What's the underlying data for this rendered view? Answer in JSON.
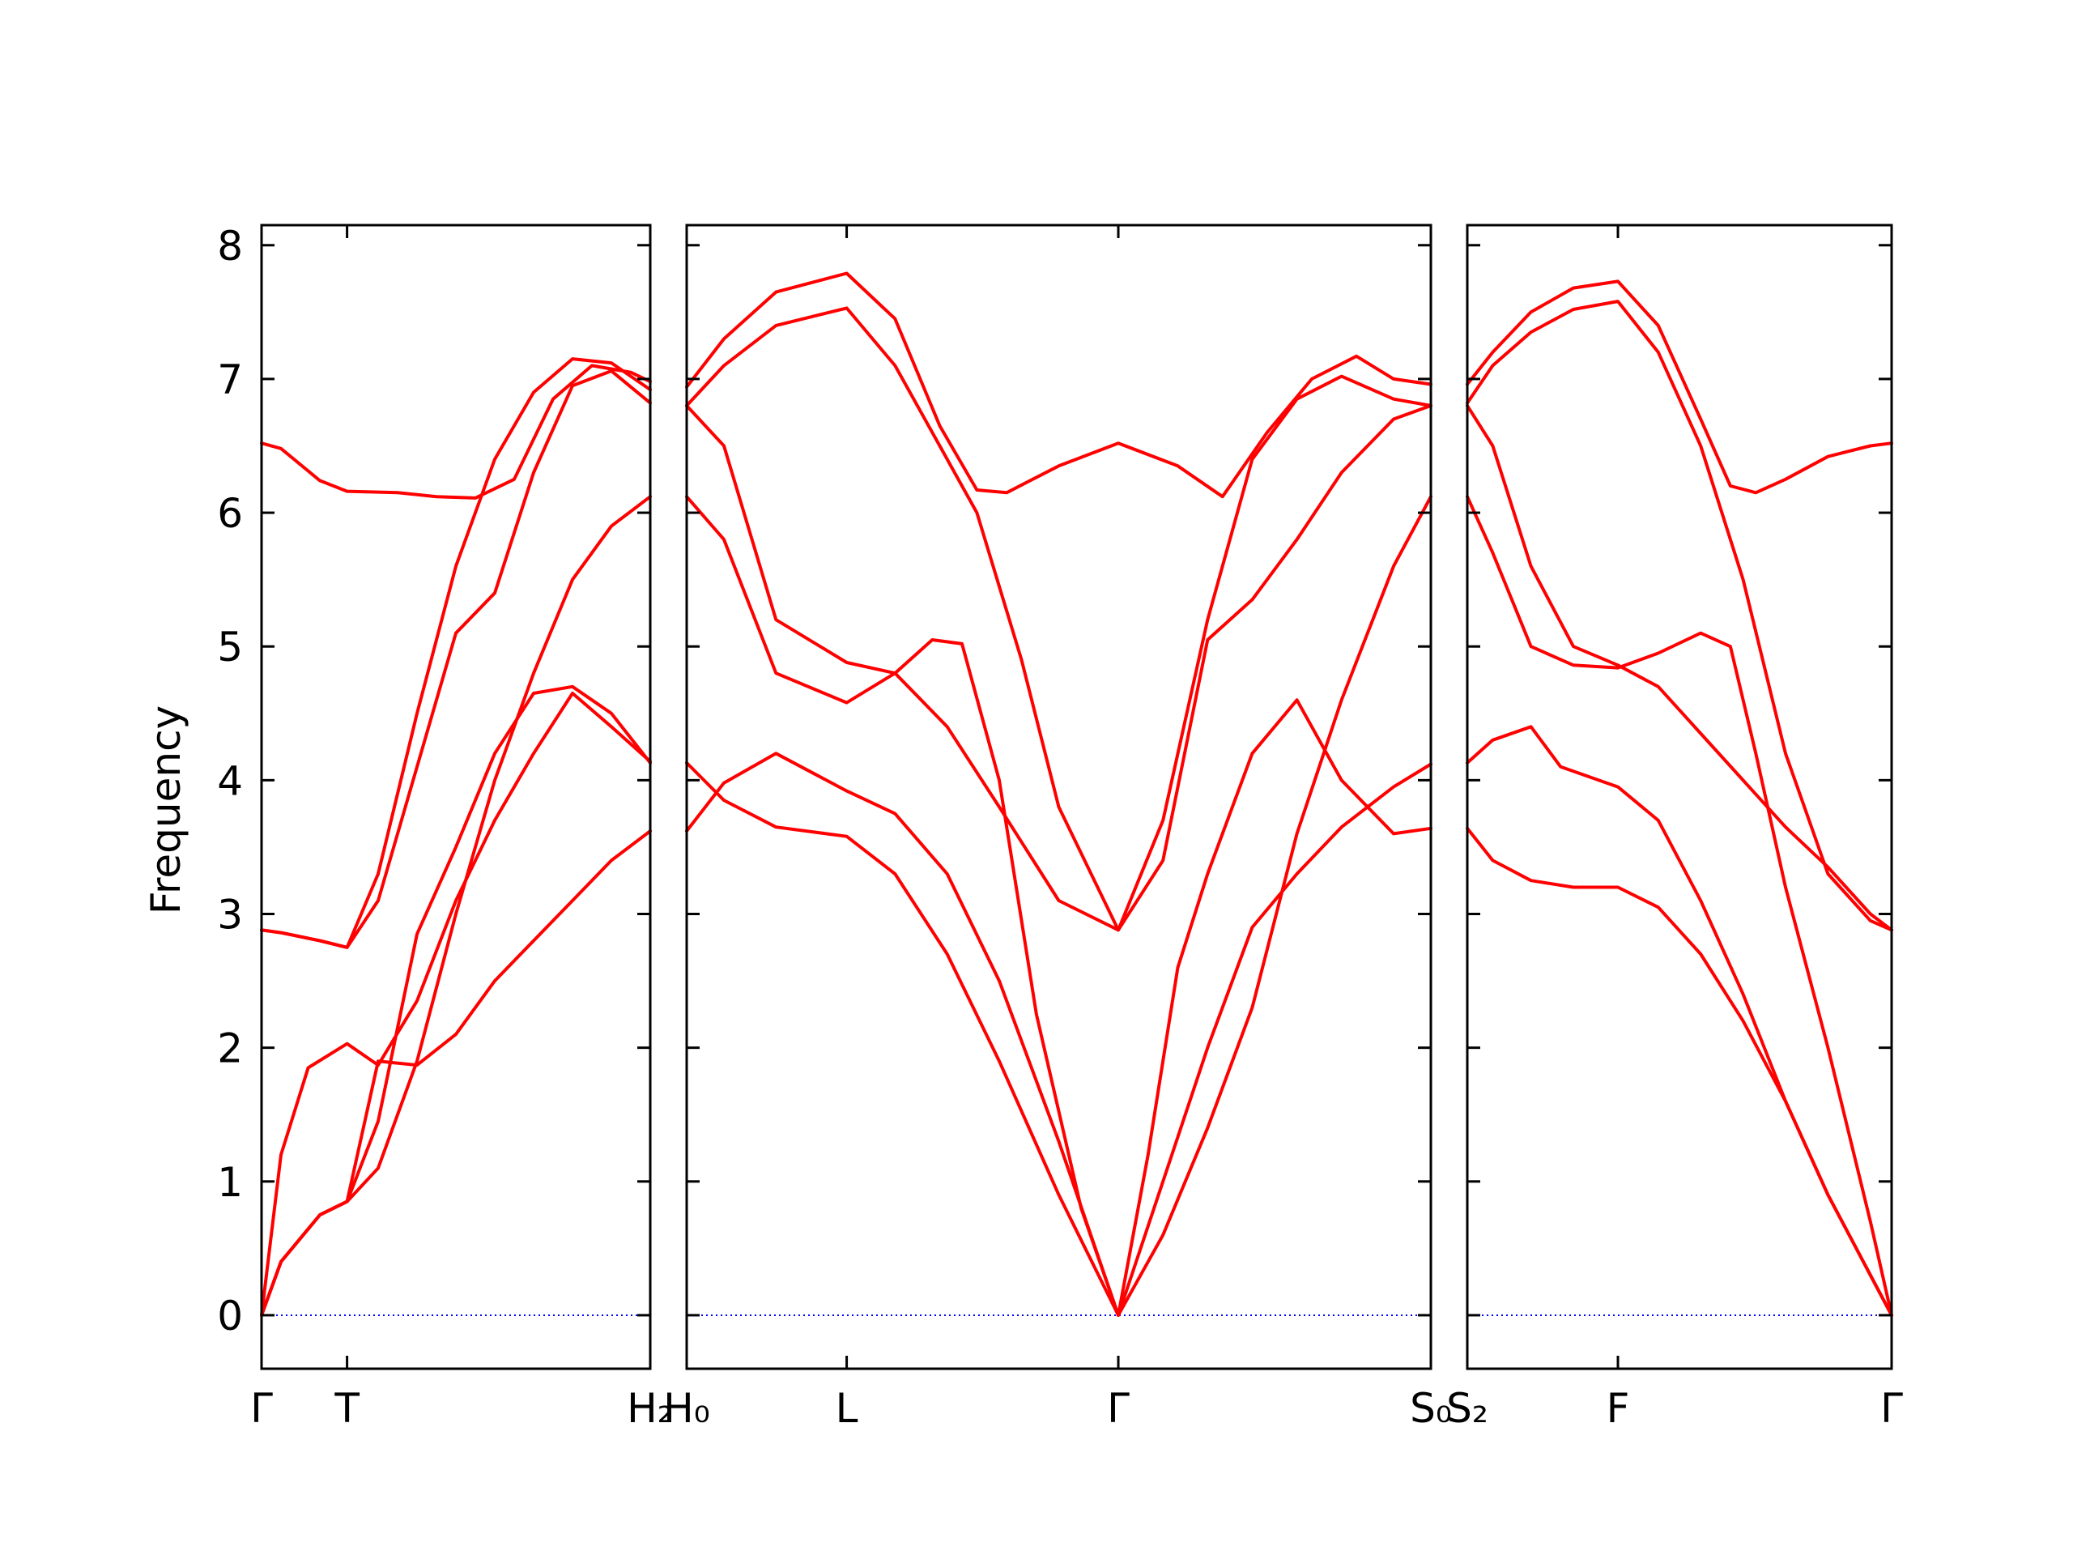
{
  "chart_data": {
    "type": "line",
    "ylabel": "Frequency",
    "ylim": [
      -0.4,
      8.15
    ],
    "yticks": [
      "0",
      "1",
      "2",
      "3",
      "4",
      "5",
      "6",
      "7",
      "8"
    ],
    "grid": false,
    "colors": {
      "band": "#ff0000",
      "zero_line": "#0000ff",
      "axes": "#000000"
    },
    "panels": [
      {
        "name": "panel-1",
        "xlim": [
          0,
          1
        ],
        "ticks": [
          {
            "x": 0.0,
            "label": "Γ"
          },
          {
            "x": 0.22,
            "label": "T"
          },
          {
            "x": 1.0,
            "label": "H₂"
          }
        ],
        "series": [
          {
            "x": [
              0,
              0.05,
              0.15,
              0.22,
              0.35,
              0.45,
              0.55,
              0.65,
              0.75,
              0.85,
              0.95,
              1.0
            ],
            "y": [
              6.52,
              6.48,
              6.24,
              6.16,
              6.15,
              6.12,
              6.11,
              6.25,
              6.85,
              7.1,
              7.05,
              6.98
            ]
          },
          {
            "x": [
              0,
              0.05,
              0.15,
              0.22,
              0.3,
              0.4,
              0.5,
              0.6,
              0.7,
              0.8,
              0.9,
              1.0
            ],
            "y": [
              2.88,
              2.86,
              2.8,
              2.75,
              3.3,
              4.5,
              5.6,
              6.4,
              6.9,
              7.15,
              7.12,
              6.92
            ]
          },
          {
            "x": [
              0,
              0.05,
              0.15,
              0.22,
              0.3,
              0.4,
              0.5,
              0.6,
              0.7,
              0.8,
              0.9,
              1.0
            ],
            "y": [
              2.88,
              2.86,
              2.8,
              2.75,
              3.1,
              4.1,
              5.1,
              5.4,
              6.3,
              6.95,
              7.06,
              6.82
            ]
          },
          {
            "x": [
              0,
              0.05,
              0.12,
              0.22,
              0.3,
              0.4,
              0.5,
              0.6,
              0.7,
              0.8,
              0.9,
              1.0
            ],
            "y": [
              0.0,
              1.2,
              1.85,
              2.03,
              1.87,
              2.35,
              3.1,
              3.7,
              4.2,
              4.65,
              4.4,
              4.14
            ]
          },
          {
            "x": [
              0,
              0.05,
              0.15,
              0.22,
              0.3,
              0.4,
              0.5,
              0.6,
              0.7,
              0.8,
              0.9,
              1.0
            ],
            "y": [
              0.0,
              0.4,
              0.75,
              0.85,
              1.45,
              2.85,
              3.5,
              4.2,
              4.65,
              4.7,
              4.5,
              4.13
            ]
          },
          {
            "x": [
              0,
              0.05,
              0.15,
              0.22,
              0.3,
              0.4,
              0.5,
              0.6,
              0.7,
              0.8,
              0.9,
              1.0
            ],
            "y": [
              0.0,
              0.4,
              0.75,
              0.85,
              1.1,
              1.9,
              3.0,
              4.0,
              4.8,
              5.5,
              5.9,
              6.12
            ]
          },
          {
            "x": [
              0,
              0.05,
              0.15,
              0.22,
              0.3,
              0.4,
              0.5,
              0.6,
              0.7,
              0.8,
              0.9,
              1.0
            ],
            "y": [
              0.0,
              0.4,
              0.75,
              0.85,
              1.9,
              1.87,
              2.1,
              2.5,
              2.8,
              3.1,
              3.4,
              3.62
            ]
          }
        ]
      },
      {
        "name": "panel-2",
        "xlim": [
          0,
          1
        ],
        "ticks": [
          {
            "x": 0.0,
            "label": "H₀"
          },
          {
            "x": 0.215,
            "label": "L"
          },
          {
            "x": 0.58,
            "label": "Γ"
          },
          {
            "x": 1.0,
            "label": "S₀"
          }
        ],
        "series": [
          {
            "x": [
              0,
              0.05,
              0.12,
              0.215,
              0.28,
              0.34,
              0.39,
              0.43,
              0.5,
              0.58,
              0.66,
              0.72,
              0.78,
              0.84,
              0.9,
              0.95,
              1.0
            ],
            "y": [
              6.94,
              7.3,
              7.65,
              7.79,
              7.45,
              6.65,
              6.17,
              6.15,
              6.35,
              6.52,
              6.35,
              6.12,
              6.6,
              7.0,
              7.17,
              7.0,
              6.96
            ]
          },
          {
            "x": [
              0,
              0.05,
              0.12,
              0.215,
              0.28,
              0.34,
              0.39,
              0.45,
              0.5,
              0.58,
              0.64,
              0.7,
              0.76,
              0.82,
              0.88,
              0.95,
              1.0
            ],
            "y": [
              6.8,
              7.1,
              7.4,
              7.53,
              7.1,
              6.5,
              6.0,
              4.9,
              3.8,
              2.88,
              3.7,
              5.2,
              6.4,
              6.85,
              7.02,
              6.85,
              6.8
            ]
          },
          {
            "x": [
              0,
              0.05,
              0.12,
              0.215,
              0.28,
              0.35,
              0.42,
              0.5,
              0.58,
              0.64,
              0.7,
              0.76,
              0.82,
              0.88,
              0.95,
              1.0
            ],
            "y": [
              6.8,
              6.5,
              5.2,
              4.88,
              4.8,
              4.4,
              3.8,
              3.1,
              2.88,
              3.4,
              5.05,
              5.35,
              5.8,
              6.3,
              6.7,
              6.8
            ]
          },
          {
            "x": [
              0,
              0.05,
              0.12,
              0.215,
              0.28,
              0.33,
              0.37,
              0.42,
              0.47,
              0.53,
              0.58
            ],
            "y": [
              6.12,
              5.8,
              4.8,
              4.58,
              4.8,
              5.05,
              5.02,
              4.0,
              2.25,
              0.8,
              0.0
            ]
          },
          {
            "x": [
              0,
              0.05,
              0.12,
              0.215,
              0.28,
              0.35,
              0.42,
              0.5,
              0.58
            ],
            "y": [
              3.62,
              3.98,
              4.2,
              3.92,
              3.75,
              3.3,
              2.5,
              1.3,
              0.0
            ]
          },
          {
            "x": [
              0,
              0.05,
              0.12,
              0.215,
              0.28,
              0.35,
              0.42,
              0.5,
              0.58
            ],
            "y": [
              4.13,
              3.85,
              3.65,
              3.58,
              3.3,
              2.7,
              1.9,
              0.9,
              0.0
            ]
          },
          {
            "x": [
              0.58,
              0.62,
              0.66,
              0.7,
              0.76,
              0.82,
              0.88,
              0.95,
              1.0
            ],
            "y": [
              0.0,
              1.2,
              2.6,
              3.3,
              4.2,
              4.6,
              4.0,
              3.6,
              3.64
            ]
          },
          {
            "x": [
              0.58,
              0.64,
              0.7,
              0.76,
              0.82,
              0.88,
              0.95,
              1.0
            ],
            "y": [
              0.0,
              1.0,
              2.0,
              2.9,
              3.3,
              3.65,
              3.95,
              4.12
            ]
          },
          {
            "x": [
              0.58,
              0.64,
              0.7,
              0.76,
              0.82,
              0.88,
              0.95,
              1.0
            ],
            "y": [
              0.0,
              0.6,
              1.4,
              2.3,
              3.6,
              4.6,
              5.6,
              6.12
            ]
          }
        ]
      },
      {
        "name": "panel-3",
        "xlim": [
          0,
          1
        ],
        "ticks": [
          {
            "x": 0.0,
            "label": "S₂"
          },
          {
            "x": 0.355,
            "label": "F"
          },
          {
            "x": 1.0,
            "label": "Γ"
          }
        ],
        "series": [
          {
            "x": [
              0,
              0.06,
              0.15,
              0.25,
              0.355,
              0.45,
              0.55,
              0.62,
              0.68,
              0.75,
              0.85,
              0.95,
              1.0
            ],
            "y": [
              6.96,
              7.2,
              7.5,
              7.68,
              7.73,
              7.4,
              6.7,
              6.2,
              6.15,
              6.25,
              6.42,
              6.5,
              6.52
            ]
          },
          {
            "x": [
              0,
              0.06,
              0.15,
              0.25,
              0.355,
              0.45,
              0.55,
              0.65,
              0.75,
              0.85,
              0.95,
              1.0
            ],
            "y": [
              6.82,
              7.1,
              7.35,
              7.52,
              7.58,
              7.2,
              6.5,
              5.5,
              4.2,
              3.3,
              2.95,
              2.88
            ]
          },
          {
            "x": [
              0,
              0.06,
              0.15,
              0.25,
              0.355,
              0.45,
              0.55,
              0.65,
              0.75,
              0.85,
              0.95,
              1.0
            ],
            "y": [
              6.8,
              6.5,
              5.6,
              5.0,
              4.86,
              4.7,
              4.35,
              4.0,
              3.65,
              3.35,
              3.0,
              2.88
            ]
          },
          {
            "x": [
              0,
              0.06,
              0.15,
              0.25,
              0.355,
              0.45,
              0.55,
              0.62,
              0.68,
              0.75,
              0.85,
              0.95,
              1.0
            ],
            "y": [
              6.12,
              5.7,
              5.0,
              4.86,
              4.84,
              4.95,
              5.1,
              5.0,
              4.2,
              3.2,
              2.0,
              0.7,
              0.0
            ]
          },
          {
            "x": [
              0,
              0.06,
              0.15,
              0.22,
              0.355,
              0.45,
              0.55,
              0.65,
              0.75,
              0.85,
              0.95,
              1.0
            ],
            "y": [
              4.13,
              4.3,
              4.4,
              4.1,
              3.95,
              3.7,
              3.1,
              2.4,
              1.6,
              0.9,
              0.3,
              0.0
            ]
          },
          {
            "x": [
              0,
              0.06,
              0.15,
              0.25,
              0.355,
              0.45,
              0.55,
              0.65,
              0.75,
              0.85,
              0.95,
              1.0
            ],
            "y": [
              3.64,
              3.4,
              3.25,
              3.2,
              3.2,
              3.05,
              2.7,
              2.2,
              1.6,
              0.9,
              0.3,
              0.0
            ]
          }
        ]
      }
    ]
  }
}
